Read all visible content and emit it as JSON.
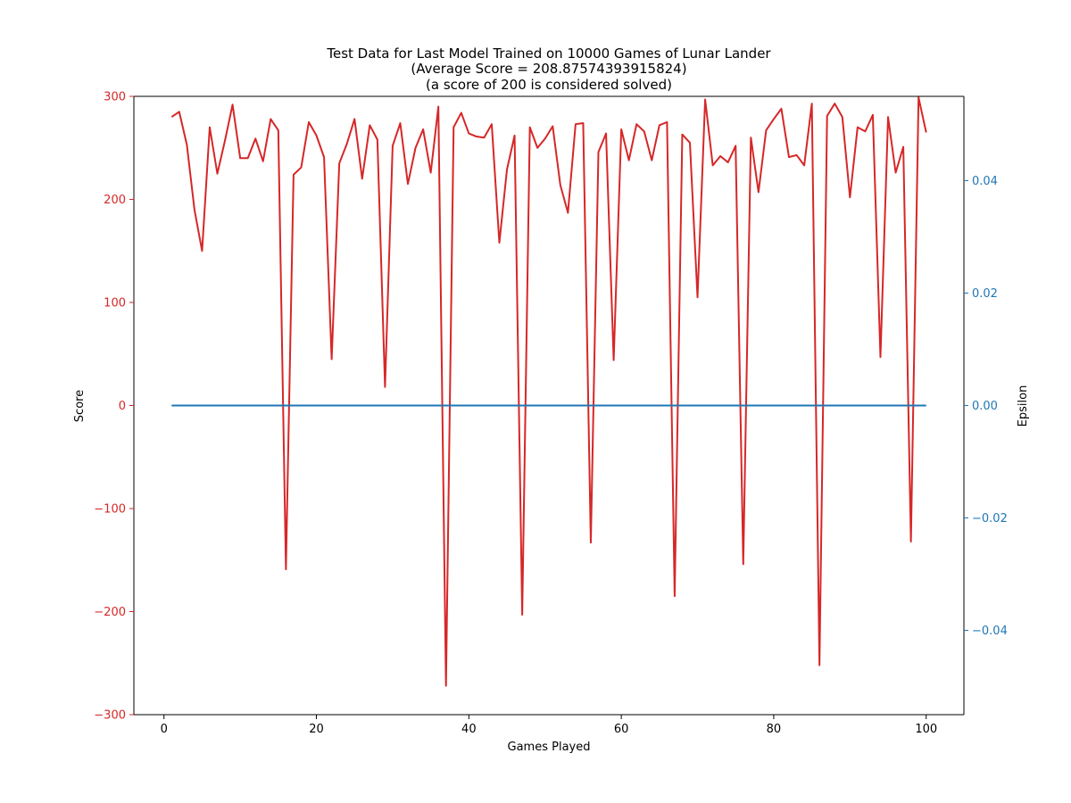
{
  "chart_data": {
    "type": "line",
    "title_lines": [
      "Test Data for Last Model Trained on 10000 Games of Lunar Lander",
      "(Average Score = 208.87574393915824)",
      "(a score of 200 is considered solved)"
    ],
    "xlabel": "Games Played",
    "ylabel": "Score",
    "ylabel_right": "Epsilon",
    "xlim": [
      -3.95,
      104.95
    ],
    "ylim": [
      -300,
      300
    ],
    "ylim_right": [
      -0.055,
      0.055
    ],
    "x_ticks": [
      0,
      20,
      40,
      60,
      80,
      100
    ],
    "x_tick_labels": [
      "0",
      "20",
      "40",
      "60",
      "80",
      "100"
    ],
    "y_ticks": [
      -300,
      -200,
      -100,
      0,
      100,
      200,
      300
    ],
    "y_tick_labels": [
      "−300",
      "−200",
      "−100",
      "0",
      "100",
      "200",
      "300"
    ],
    "y_ticks_right": [
      -0.04,
      -0.02,
      0.0,
      0.02,
      0.04
    ],
    "y_tick_labels_right": [
      "−0.04",
      "−0.02",
      "0.00",
      "0.02",
      "0.04"
    ],
    "grid": false,
    "colors": {
      "score": "#d62728",
      "epsilon": "#1f77b4",
      "axis": "#000000"
    },
    "series": [
      {
        "axis": "left",
        "x": [
          1,
          2,
          3,
          4,
          5,
          6,
          7,
          8,
          9,
          10,
          11,
          12,
          13,
          14,
          15,
          16,
          17,
          18,
          19,
          20,
          21,
          22,
          23,
          24,
          25,
          26,
          27,
          28,
          29,
          30,
          31,
          32,
          33,
          34,
          35,
          36,
          37,
          38,
          39,
          40,
          41,
          42,
          43,
          44,
          45,
          46,
          47,
          48,
          49,
          50,
          51,
          52,
          53,
          54,
          55,
          56,
          57,
          58,
          59,
          60,
          61,
          62,
          63,
          64,
          65,
          66,
          67,
          68,
          69,
          70,
          71,
          72,
          73,
          74,
          75,
          76,
          77,
          78,
          79,
          80,
          81,
          82,
          83,
          84,
          85,
          86,
          87,
          88,
          89,
          90,
          91,
          92,
          93,
          94,
          95,
          96,
          97,
          98,
          99,
          100
        ],
        "values": [
          280,
          285,
          253,
          190,
          150,
          270,
          225,
          257,
          292,
          240,
          240,
          259,
          237,
          278,
          267,
          -159,
          224,
          231,
          275,
          262,
          241,
          45,
          235,
          254,
          278,
          220,
          272,
          258,
          18,
          252,
          274,
          215,
          250,
          268,
          226,
          290,
          -272,
          270,
          284,
          264,
          261,
          260,
          273,
          158,
          229,
          262,
          -203,
          270,
          250,
          259,
          271,
          214,
          187,
          273,
          274,
          -133,
          246,
          264,
          44,
          268,
          238,
          273,
          266,
          238,
          272,
          275,
          -185,
          263,
          255,
          105,
          297,
          233,
          242,
          236,
          252,
          -154,
          260,
          207,
          267,
          278,
          288,
          241,
          243,
          233,
          293,
          -252,
          281,
          293,
          280,
          202,
          270,
          266,
          282,
          47,
          280,
          226,
          251,
          -132,
          299,
          265
        ]
      },
      {
        "axis": "right",
        "x": [
          1,
          100
        ],
        "values": [
          0,
          0
        ]
      }
    ]
  }
}
